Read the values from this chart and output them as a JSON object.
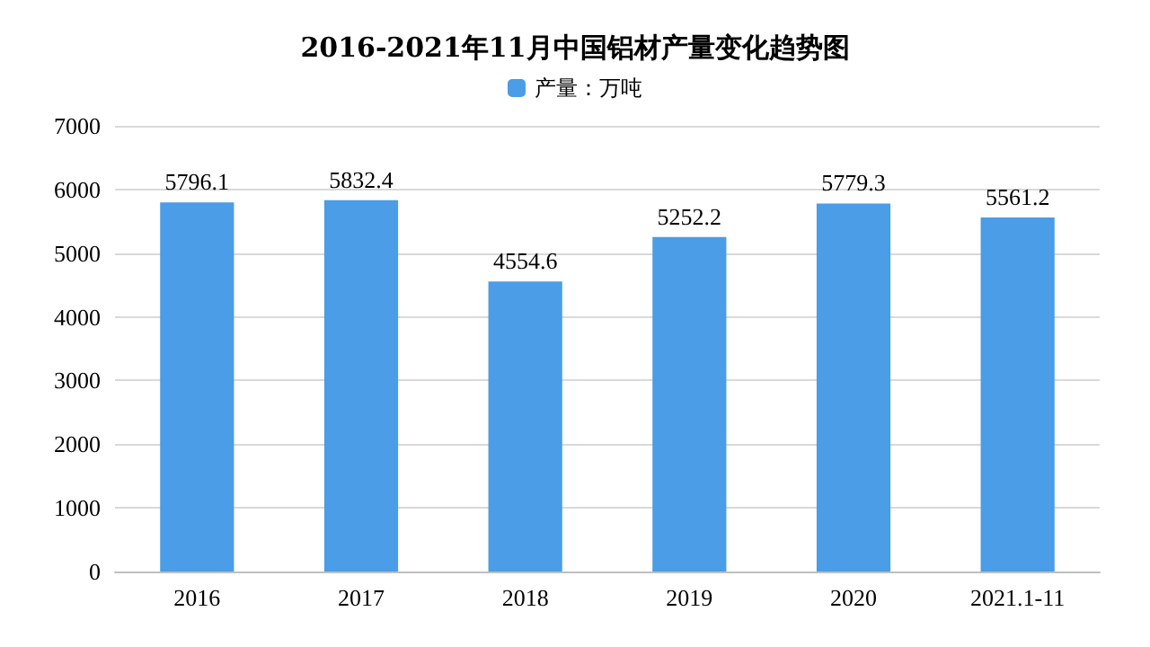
{
  "chart_data": {
    "type": "bar",
    "title": "2016-2021年11月中国铝材产量变化趋势图",
    "categories": [
      "2016",
      "2017",
      "2018",
      "2019",
      "2020",
      "2021.1-11"
    ],
    "series": [
      {
        "name": "产量：万吨",
        "color": "#4a9de6",
        "values": [
          5796.1,
          5832.4,
          4554.6,
          5252.2,
          5779.3,
          5561.2
        ]
      }
    ],
    "ylim": [
      0,
      7000
    ],
    "yticks": [
      0,
      1000,
      2000,
      3000,
      4000,
      5000,
      6000,
      7000
    ],
    "grid": "y",
    "legend": "top",
    "data_labels": true
  }
}
